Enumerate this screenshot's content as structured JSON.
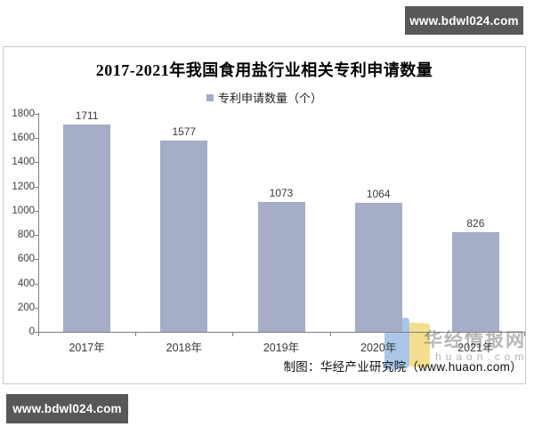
{
  "banners": {
    "top_label": "www.bdwl024.com",
    "bottom_label": "www.bdwl024.com"
  },
  "chart_data": {
    "type": "bar",
    "title": "2017-2021年我国食用盐行业相关专利申请数量",
    "legend": "专利申请数量（个）",
    "categories": [
      "2017年",
      "2018年",
      "2019年",
      "2020年",
      "2021年"
    ],
    "values": [
      1711,
      1577,
      1073,
      1064,
      826
    ],
    "xlabel": "",
    "ylabel": "",
    "ylim": [
      0,
      1800
    ],
    "yticks": [
      0,
      200,
      400,
      600,
      800,
      1000,
      1200,
      1400,
      1600,
      1800
    ],
    "grid": false,
    "legend_position": "top-center",
    "bar_color": "#a5aec6"
  },
  "credit": "制图：华经产业研究院（www.huaon.com）",
  "watermark": {
    "brand": "华经情报网",
    "domain": "huaon.com"
  },
  "colors": {
    "bar": "#a5aec6",
    "banner_bg": "#58585a",
    "box_border": "#c9c9c9",
    "axis": "#7f7f7f",
    "logo_blue": "#aac7e9",
    "logo_yellow": "#f3df8d"
  }
}
